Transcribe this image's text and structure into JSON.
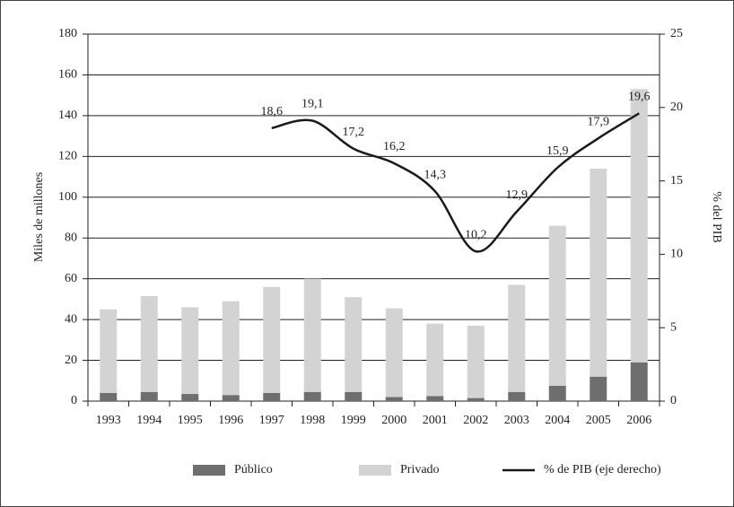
{
  "chart_data": {
    "type": "bar-line",
    "categories": [
      "1993",
      "1994",
      "1995",
      "1996",
      "1997",
      "1998",
      "1999",
      "2000",
      "2001",
      "2002",
      "2003",
      "2004",
      "2005",
      "2006"
    ],
    "series": [
      {
        "name": "Público",
        "type": "bar",
        "color": "#6e6e6e",
        "values": [
          4,
          4.5,
          3.5,
          3,
          4,
          4.5,
          4.5,
          2,
          2.5,
          1.5,
          4.5,
          7.5,
          12,
          19
        ]
      },
      {
        "name": "Privado",
        "type": "bar",
        "color": "#d3d3d3",
        "values": [
          41,
          47,
          42.5,
          46,
          52,
          55.5,
          46.5,
          43.5,
          35.5,
          35.5,
          52.5,
          78.5,
          102,
          134
        ]
      },
      {
        "name": "% de PIB (eje derecho)",
        "type": "line",
        "axis": "y2",
        "color": "#1a1a1a",
        "values": [
          null,
          null,
          null,
          null,
          18.6,
          19.1,
          17.2,
          16.2,
          14.3,
          10.2,
          12.9,
          15.9,
          17.9,
          19.6
        ],
        "value_labels": [
          null,
          null,
          null,
          null,
          "18,6",
          "19,1",
          "17,2",
          "16,2",
          "14,3",
          "10,2",
          "12,9",
          "15,9",
          "17,9",
          "19,6"
        ]
      }
    ],
    "y_label": "Miles de millones",
    "y2_label": "% del PIB",
    "ylim": [
      0,
      180
    ],
    "yticks": [
      0,
      20,
      40,
      60,
      80,
      100,
      120,
      140,
      160,
      180
    ],
    "y2lim": [
      0,
      25
    ],
    "y2ticks": [
      0,
      5,
      10,
      15,
      20,
      25
    ],
    "grid": true,
    "legend": "bottom"
  }
}
